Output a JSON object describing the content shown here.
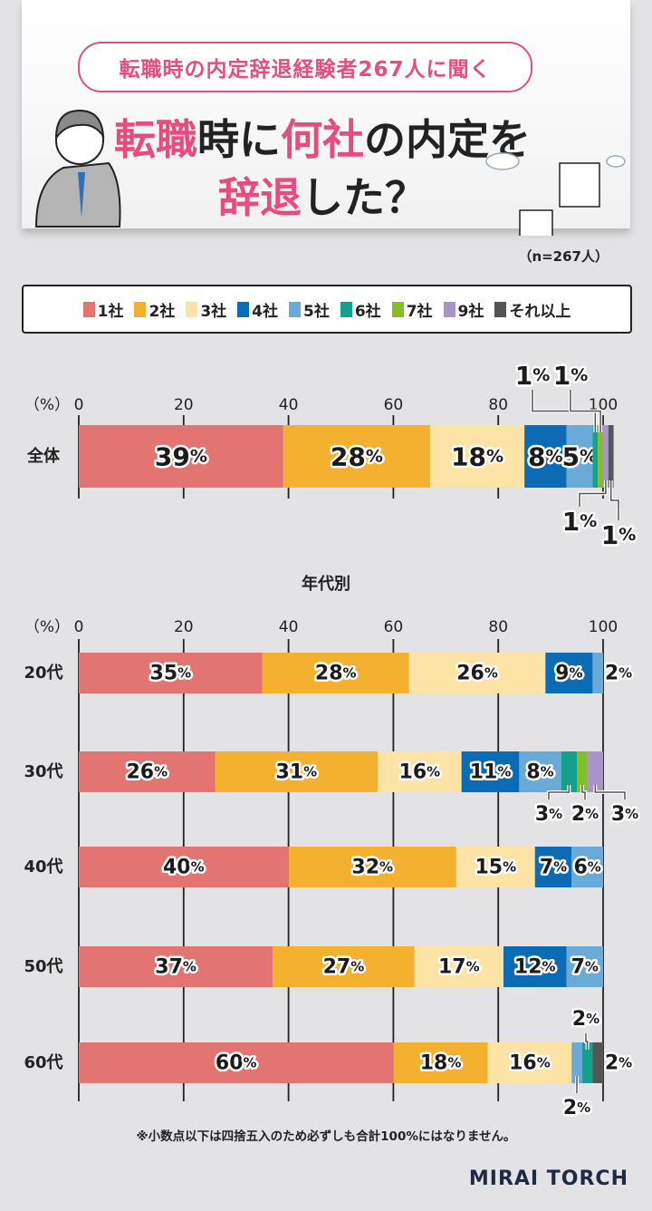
{
  "header": {
    "subtitle": "転職時の内定辞退経験者267人に聞く",
    "title_parts": [
      {
        "text": "転職",
        "highlight": true
      },
      {
        "text": "時に",
        "highlight": false
      },
      {
        "text": "何社",
        "highlight": true
      },
      {
        "text": "の内定を",
        "highlight": false
      },
      {
        "text": "辞退",
        "highlight": true
      },
      {
        "text": "した？",
        "highlight": false
      }
    ],
    "sample": "（n=267人）"
  },
  "footnote": "※小数点以下は四捨五入のため必ずしも合計100%にはなりません。",
  "brand": "MIRAI TORCH",
  "chart_data": [
    {
      "type": "bar",
      "orientation": "horizontal",
      "stacked": true,
      "title": "",
      "unit_label": "（%）",
      "xlim": [
        0,
        100
      ],
      "xticks": [
        0,
        20,
        40,
        60,
        80,
        100
      ],
      "legend": {
        "placement": "top",
        "entries": [
          "1社",
          "2社",
          "3社",
          "4社",
          "5社",
          "6社",
          "7社",
          "9社",
          "それ以上"
        ]
      },
      "colors": [
        "#e27471",
        "#f3b12f",
        "#fde3a5",
        "#0b6bb5",
        "#6aaad8",
        "#13a08c",
        "#86bf25",
        "#a993c8",
        "#555555"
      ],
      "categories": [
        "全体"
      ],
      "series": [
        {
          "name": "1社",
          "values": [
            39
          ]
        },
        {
          "name": "2社",
          "values": [
            28
          ]
        },
        {
          "name": "3社",
          "values": [
            18
          ]
        },
        {
          "name": "4社",
          "values": [
            8
          ]
        },
        {
          "name": "5社",
          "values": [
            5
          ]
        },
        {
          "name": "6社",
          "values": [
            1
          ]
        },
        {
          "name": "7社",
          "values": [
            1
          ]
        },
        {
          "name": "9社",
          "values": [
            1
          ]
        },
        {
          "name": "それ以上",
          "values": [
            1
          ]
        }
      ]
    },
    {
      "type": "bar",
      "orientation": "horizontal",
      "stacked": true,
      "title": "年代別",
      "unit_label": "（%）",
      "xlim": [
        0,
        100
      ],
      "xticks": [
        0,
        20,
        40,
        60,
        80,
        100
      ],
      "colors": [
        "#e27471",
        "#f3b12f",
        "#fde3a5",
        "#0b6bb5",
        "#6aaad8",
        "#13a08c",
        "#86bf25",
        "#a993c8",
        "#555555"
      ],
      "categories": [
        "20代",
        "30代",
        "40代",
        "50代",
        "60代"
      ],
      "series": [
        {
          "name": "1社",
          "values": [
            35,
            26,
            40,
            37,
            60
          ]
        },
        {
          "name": "2社",
          "values": [
            28,
            31,
            32,
            27,
            18
          ]
        },
        {
          "name": "3社",
          "values": [
            26,
            16,
            15,
            17,
            16
          ]
        },
        {
          "name": "4社",
          "values": [
            9,
            11,
            7,
            12,
            0
          ]
        },
        {
          "name": "5社",
          "values": [
            2,
            8,
            6,
            7,
            2
          ]
        },
        {
          "name": "6社",
          "values": [
            0,
            3,
            0,
            0,
            2
          ]
        },
        {
          "name": "7社",
          "values": [
            0,
            2,
            0,
            0,
            0
          ]
        },
        {
          "name": "9社",
          "values": [
            0,
            3,
            0,
            0,
            0
          ]
        },
        {
          "name": "それ以上",
          "values": [
            0,
            0,
            0,
            0,
            2
          ]
        }
      ]
    }
  ]
}
